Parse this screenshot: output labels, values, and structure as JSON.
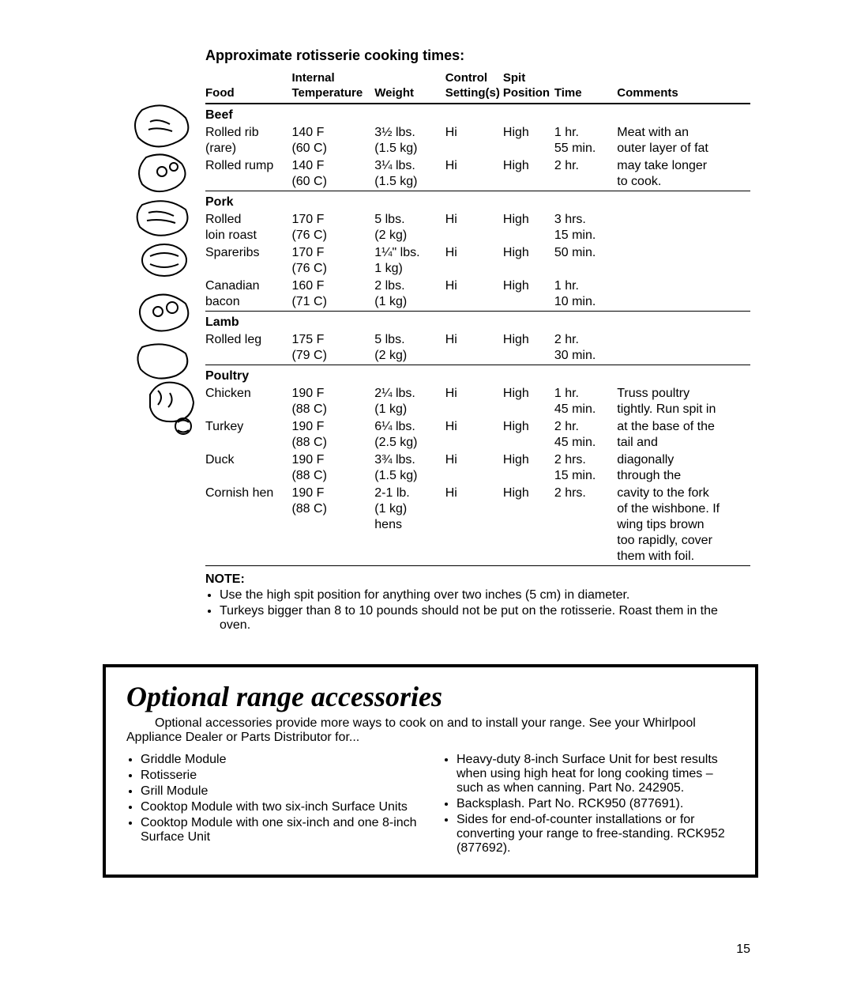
{
  "title": "Approximate rotisserie cooking times:",
  "headers": {
    "food": "Food",
    "temp_l1": "Internal",
    "temp_l2": "Temperature",
    "weight": "Weight",
    "ctrl_l1": "Control",
    "ctrl_l2": "Setting(s)",
    "spit_l1": "Spit",
    "spit_l2": "Position",
    "time": "Time",
    "comments": "Comments"
  },
  "sections": [
    {
      "name": "Beef",
      "rows": [
        {
          "food_l1": "Rolled rib",
          "food_l2": "(rare)",
          "temp_l1": "140 F",
          "temp_l2": "(60 C)",
          "wt_l1": "3½ lbs.",
          "wt_l2": "(1.5 kg)",
          "ctrl": "Hi",
          "spit": "High",
          "time_l1": "1 hr.",
          "time_l2": "55 min.",
          "comm_l1": "Meat with an",
          "comm_l2": "outer layer of fat"
        },
        {
          "food_l1": "Rolled rump",
          "food_l2": "",
          "temp_l1": "140 F",
          "temp_l2": "(60 C)",
          "wt_l1": "3¼ lbs.",
          "wt_l2": "(1.5 kg)",
          "ctrl": "Hi",
          "spit": "High",
          "time_l1": "2 hr.",
          "time_l2": "",
          "comm_l1": "may take longer",
          "comm_l2": "to cook."
        }
      ]
    },
    {
      "name": "Pork",
      "rows": [
        {
          "food_l1": "Rolled",
          "food_l2": "loin roast",
          "temp_l1": "170 F",
          "temp_l2": "(76 C)",
          "wt_l1": "5 lbs.",
          "wt_l2": "(2 kg)",
          "ctrl": "Hi",
          "spit": "High",
          "time_l1": "3 hrs.",
          "time_l2": "15 min.",
          "comm_l1": "",
          "comm_l2": ""
        },
        {
          "food_l1": "Spareribs",
          "food_l2": "",
          "temp_l1": "170 F",
          "temp_l2": "(76 C)",
          "wt_l1": "1¼\" lbs.",
          "wt_l2": "1 kg)",
          "ctrl": "Hi",
          "spit": "High",
          "time_l1": "50 min.",
          "time_l2": "",
          "comm_l1": "",
          "comm_l2": ""
        },
        {
          "food_l1": "Canadian",
          "food_l2": "bacon",
          "temp_l1": "160 F",
          "temp_l2": "(71 C)",
          "wt_l1": "2 lbs.",
          "wt_l2": "(1 kg)",
          "ctrl": "Hi",
          "spit": "High",
          "time_l1": "1 hr.",
          "time_l2": "10 min.",
          "comm_l1": "",
          "comm_l2": ""
        }
      ]
    },
    {
      "name": "Lamb",
      "rows": [
        {
          "food_l1": "Rolled leg",
          "food_l2": "",
          "temp_l1": "175 F",
          "temp_l2": "(79 C)",
          "wt_l1": "5 lbs.",
          "wt_l2": "(2 kg)",
          "ctrl": "Hi",
          "spit": "High",
          "time_l1": "2 hr.",
          "time_l2": "30 min.",
          "comm_l1": "",
          "comm_l2": ""
        }
      ]
    },
    {
      "name": "Poultry",
      "rows": [
        {
          "food_l1": "Chicken",
          "food_l2": "",
          "temp_l1": "190 F",
          "temp_l2": "(88 C)",
          "wt_l1": "2¼ lbs.",
          "wt_l2": "(1 kg)",
          "ctrl": "Hi",
          "spit": "High",
          "time_l1": "1 hr.",
          "time_l2": "45 min.",
          "comm_l1": "Truss poultry",
          "comm_l2": "tightly. Run spit in"
        },
        {
          "food_l1": "Turkey",
          "food_l2": "",
          "temp_l1": "190 F",
          "temp_l2": "(88 C)",
          "wt_l1": "6¼ lbs.",
          "wt_l2": "(2.5 kg)",
          "ctrl": "Hi",
          "spit": "High",
          "time_l1": "2 hr.",
          "time_l2": "45 min.",
          "comm_l1": "at the base of the",
          "comm_l2": "tail and"
        },
        {
          "food_l1": "Duck",
          "food_l2": "",
          "temp_l1": "190 F",
          "temp_l2": "(88 C)",
          "wt_l1": "3¾ lbs.",
          "wt_l2": "(1.5 kg)",
          "ctrl": "Hi",
          "spit": "High",
          "time_l1": "2 hrs.",
          "time_l2": "15 min.",
          "comm_l1": "diagonally",
          "comm_l2": "through the"
        },
        {
          "food_l1": "Cornish hen",
          "food_l2": "",
          "temp_l1": "190 F",
          "temp_l2": "(88 C)",
          "wt_l1": "2-1 lb.",
          "wt_l2": "(1 kg)",
          "wt_l3": "hens",
          "ctrl": "Hi",
          "spit": "High",
          "time_l1": "2 hrs.",
          "time_l2": "",
          "comm_l1": "cavity to the fork",
          "comm_l2": "of the wishbone. If",
          "comm_l3": "wing tips brown",
          "comm_l4": "too rapidly, cover",
          "comm_l5": "them with foil."
        }
      ]
    }
  ],
  "note_label": "NOTE:",
  "notes": [
    "Use the high spit position for anything over two inches (5 cm) in diameter.",
    "Turkeys bigger than 8 to 10 pounds should not be put on the rotisserie. Roast them in the oven."
  ],
  "accessories": {
    "title": "Optional range accessories",
    "intro": "Optional accessories provide more ways to cook on and to install your range. See your Whirlpool Appliance Dealer or Parts Distributor for...",
    "col1": [
      "Griddle Module",
      "Rotisserie",
      "Grill Module",
      "Cooktop Module with two six-inch Surface Units",
      "Cooktop Module with one six-inch and one 8-inch Surface Unit"
    ],
    "col2": [
      "Heavy-duty 8-inch Surface Unit for best results when using high heat for long cooking times – such as when canning. Part No. 242905.",
      "Backsplash. Part No. RCK950 (877691).",
      "Sides for end-of-counter installations or for converting your range to free-standing. RCK952 (877692)."
    ]
  },
  "page_number": "15"
}
